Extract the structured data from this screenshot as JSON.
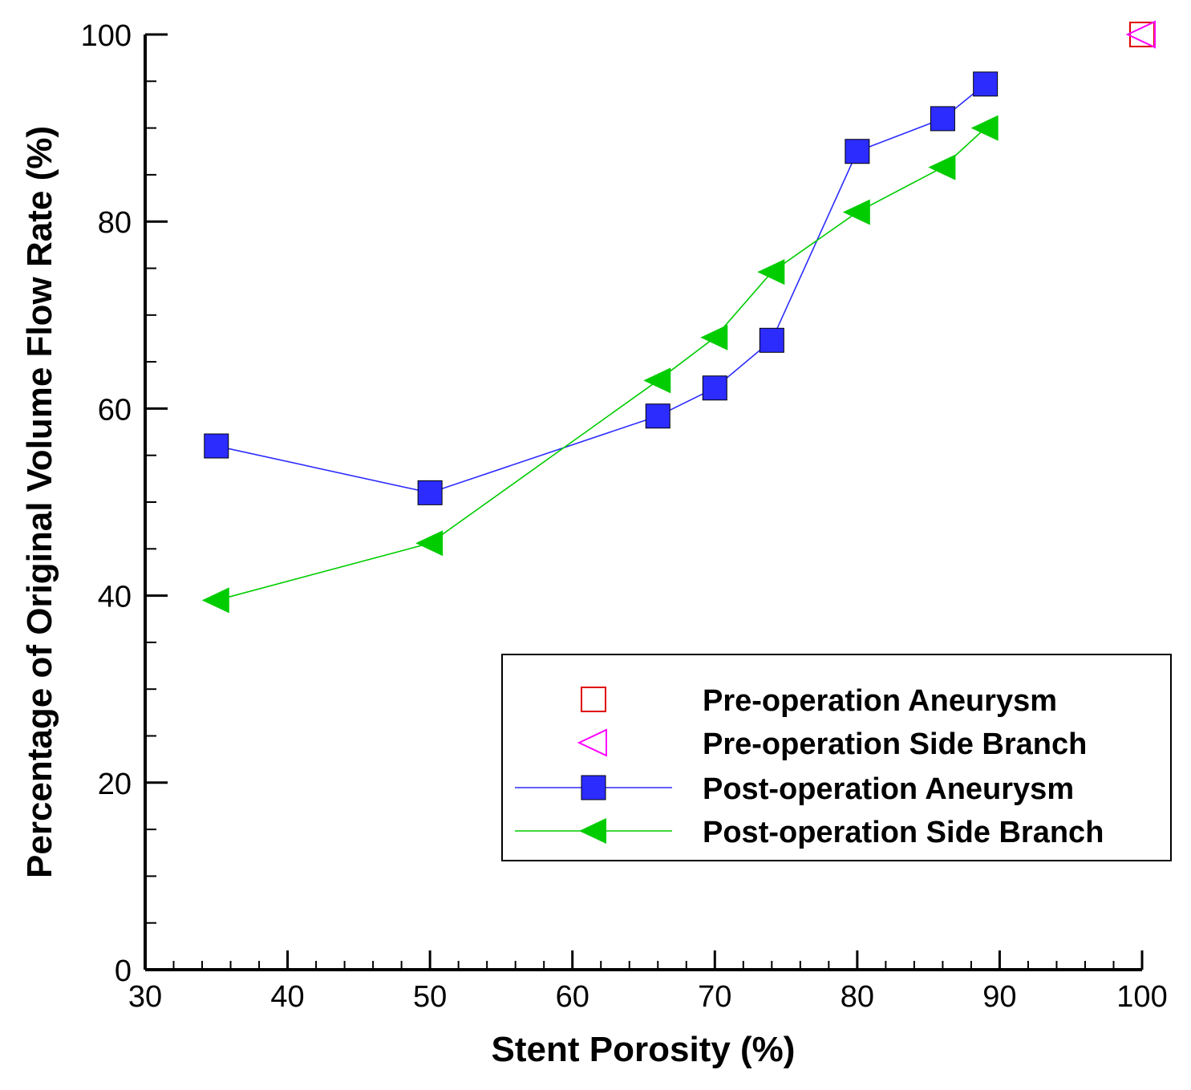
{
  "chart_data": {
    "type": "scatter",
    "title": "",
    "xlabel": "Stent Porosity (%)",
    "ylabel": "Percentage of Original Volume Flow Rate (%)",
    "xlim": [
      30,
      100
    ],
    "ylim": [
      0,
      100
    ],
    "x_major_ticks": [
      30,
      40,
      50,
      60,
      70,
      80,
      90,
      100
    ],
    "y_major_ticks": [
      0,
      20,
      40,
      60,
      80,
      100
    ],
    "x_minor_step": 2,
    "y_minor_step": 5,
    "legend_position": "lower-right",
    "series": [
      {
        "name": "Pre-operation Aneurysm",
        "marker": "square-open",
        "line": false,
        "color": "#e00000",
        "points": [
          [
            100,
            100
          ]
        ]
      },
      {
        "name": "Pre-operation Side Branch",
        "marker": "triangle-left-open",
        "line": false,
        "color": "#ff00ff",
        "points": [
          [
            100,
            100
          ]
        ]
      },
      {
        "name": "Post-operation Aneurysm",
        "marker": "square-filled",
        "line": true,
        "color": "#2c2cff",
        "points": [
          [
            35,
            56
          ],
          [
            50,
            51
          ],
          [
            66,
            59.2
          ],
          [
            70,
            62.2
          ],
          [
            74,
            67.3
          ],
          [
            80,
            87.5
          ],
          [
            86,
            91
          ],
          [
            89,
            94.7
          ]
        ]
      },
      {
        "name": "Post-operation Side Branch",
        "marker": "triangle-left-filled",
        "line": true,
        "color": "#00cc00",
        "points": [
          [
            35,
            39.5
          ],
          [
            50,
            45.6
          ],
          [
            66,
            63
          ],
          [
            70,
            67.6
          ],
          [
            74,
            74.6
          ],
          [
            80,
            81
          ],
          [
            86,
            85.8
          ],
          [
            89,
            90
          ]
        ]
      }
    ]
  }
}
